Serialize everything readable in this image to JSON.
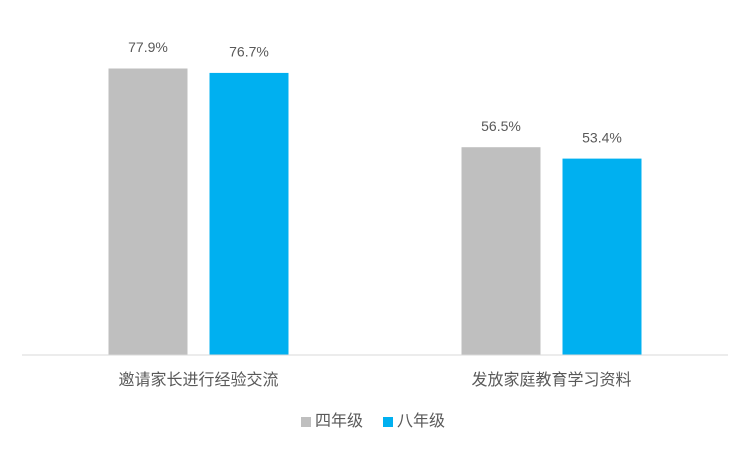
{
  "chart_data": {
    "type": "bar",
    "categories": [
      "邀请家长进行经验交流",
      "发放家庭教育学习资料"
    ],
    "series": [
      {
        "name": "四年级",
        "color": "#bfbfbf",
        "values": [
          77.9,
          56.5
        ],
        "value_labels": [
          "77.9%",
          "56.5%"
        ]
      },
      {
        "name": "八年级",
        "color": "#00b0f0",
        "values": [
          76.7,
          53.4
        ],
        "value_labels": [
          "76.7%",
          "53.4%"
        ]
      }
    ],
    "ylim": [
      0,
      90
    ],
    "legend": "bottom"
  }
}
